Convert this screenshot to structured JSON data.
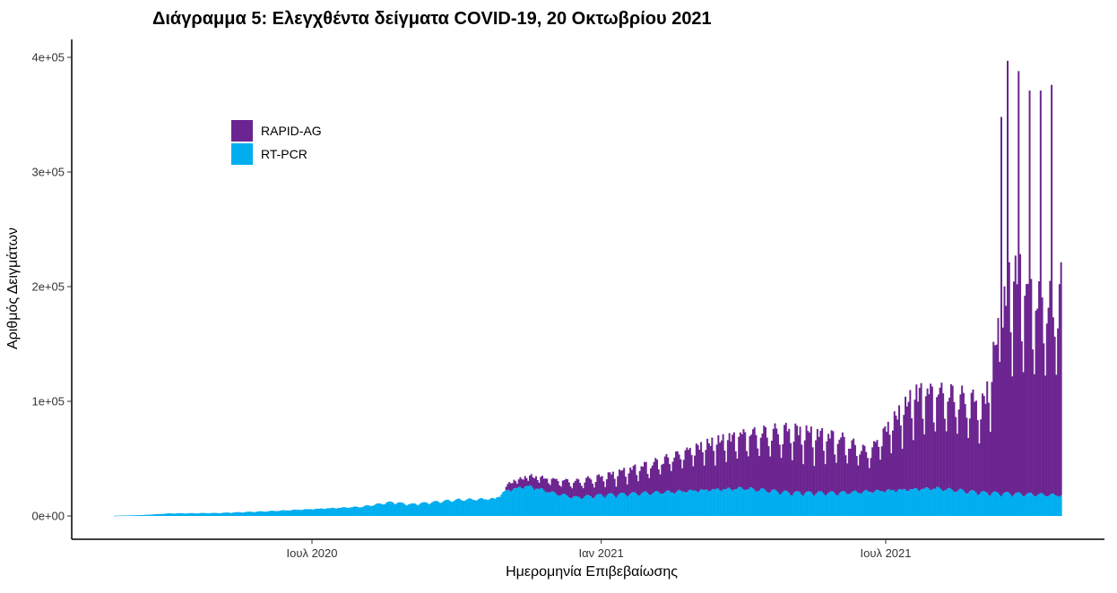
{
  "chart_data": {
    "type": "bar",
    "stacked": true,
    "title": "Διάγραμμα 5: Ελεγχθέντα δείγματα COVID-19, 20 Οκτωβρίου 2021",
    "xlabel": "Ημερομηνία Επιβεβαίωσης",
    "ylabel": "Αριθμός Δειγμάτων",
    "x_range": [
      "2020-02-26",
      "2021-10-20"
    ],
    "ylim": [
      0,
      400000
    ],
    "grid": false,
    "legend_position": "top-left",
    "x_ticks": [
      {
        "date": "2020-07-01",
        "label": "Ιουλ 2020"
      },
      {
        "date": "2021-01-01",
        "label": "Ιαν 2021"
      },
      {
        "date": "2021-07-01",
        "label": "Ιουλ 2021"
      }
    ],
    "y_ticks": [
      {
        "value": 0,
        "label": "0e+00"
      },
      {
        "value": 100000,
        "label": "1e+05"
      },
      {
        "value": 200000,
        "label": "2e+05"
      },
      {
        "value": 300000,
        "label": "3e+05"
      },
      {
        "value": 400000,
        "label": "4e+05"
      }
    ],
    "series": [
      {
        "name": "RT-PCR",
        "color": "#00AEEF",
        "points": [
          [
            "2020-02-26",
            200
          ],
          [
            "2020-03-15",
            800
          ],
          [
            "2020-04-01",
            2200
          ],
          [
            "2020-05-01",
            2500
          ],
          [
            "2020-06-01",
            4000
          ],
          [
            "2020-07-01",
            6000
          ],
          [
            "2020-08-01",
            8000
          ],
          [
            "2020-08-20",
            12000
          ],
          [
            "2020-09-01",
            10000
          ],
          [
            "2020-10-01",
            14000
          ],
          [
            "2020-10-25",
            15000
          ],
          [
            "2020-11-01",
            22000
          ],
          [
            "2020-11-15",
            26000
          ],
          [
            "2020-12-01",
            20000
          ],
          [
            "2020-12-15",
            16000
          ],
          [
            "2021-01-01",
            18000
          ],
          [
            "2021-02-01",
            20000
          ],
          [
            "2021-03-01",
            22000
          ],
          [
            "2021-04-01",
            24000
          ],
          [
            "2021-05-01",
            20000
          ],
          [
            "2021-06-01",
            20000
          ],
          [
            "2021-07-01",
            22000
          ],
          [
            "2021-08-01",
            24000
          ],
          [
            "2021-09-01",
            20000
          ],
          [
            "2021-10-20",
            18000
          ]
        ]
      },
      {
        "name": "RAPID-AG",
        "color": "#6C2590",
        "points": [
          [
            "2020-02-26",
            0
          ],
          [
            "2020-10-31",
            0
          ],
          [
            "2020-11-01",
            6000
          ],
          [
            "2020-11-20",
            10000
          ],
          [
            "2020-12-15",
            14000
          ],
          [
            "2021-01-01",
            16000
          ],
          [
            "2021-02-01",
            25000
          ],
          [
            "2021-03-01",
            38000
          ],
          [
            "2021-04-01",
            48000
          ],
          [
            "2021-05-01",
            55000
          ],
          [
            "2021-06-01",
            48000
          ],
          [
            "2021-06-20",
            35000
          ],
          [
            "2021-07-01",
            55000
          ],
          [
            "2021-07-20",
            85000
          ],
          [
            "2021-08-10",
            85000
          ],
          [
            "2021-09-01",
            78000
          ],
          [
            "2021-09-13",
            160000
          ],
          [
            "2021-09-20",
            200000
          ],
          [
            "2021-10-01",
            180000
          ],
          [
            "2021-10-15",
            170000
          ],
          [
            "2021-10-20",
            185000
          ]
        ]
      }
    ],
    "peak_days": [
      [
        "2021-09-12",
        348000
      ],
      [
        "2021-09-16",
        397000
      ],
      [
        "2021-09-23",
        388000
      ],
      [
        "2021-09-30",
        371000
      ],
      [
        "2021-10-07",
        371000
      ],
      [
        "2021-10-14",
        376000
      ]
    ]
  }
}
